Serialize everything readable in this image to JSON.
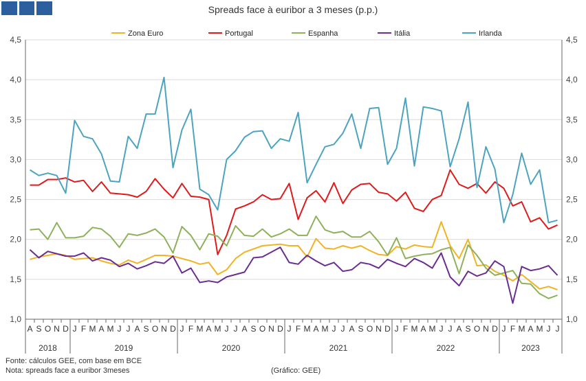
{
  "header": {
    "title": "Spreads face à euribor a 3 meses (p.p.)"
  },
  "footer": {
    "source": "Fonte: cálculos GEE, com base em BCE",
    "note": "Nota: spreads face a euribor 3meses",
    "credit": "(Gráfico: GEE)"
  },
  "chart_data": {
    "type": "line",
    "title": "Spreads face à euribor a 3 meses (p.p.)",
    "ylim": [
      1.0,
      4.5
    ],
    "yticks": [
      "1,0",
      "1,5",
      "2,0",
      "2,5",
      "3,0",
      "3,5",
      "4,0",
      "4,5"
    ],
    "grid": true,
    "legend_position": "top",
    "x": [
      "2018-08",
      "2018-09",
      "2018-10",
      "2018-11",
      "2018-12",
      "2019-01",
      "2019-02",
      "2019-03",
      "2019-04",
      "2019-05",
      "2019-06",
      "2019-07",
      "2019-08",
      "2019-09",
      "2019-10",
      "2019-11",
      "2019-12",
      "2020-01",
      "2020-02",
      "2020-03",
      "2020-04",
      "2020-05",
      "2020-06",
      "2020-07",
      "2020-08",
      "2020-09",
      "2020-10",
      "2020-11",
      "2020-12",
      "2021-01",
      "2021-02",
      "2021-03",
      "2021-04",
      "2021-05",
      "2021-06",
      "2021-07",
      "2021-08",
      "2021-09",
      "2021-10",
      "2021-11",
      "2021-12",
      "2022-01",
      "2022-02",
      "2022-03",
      "2022-04",
      "2022-05",
      "2022-06",
      "2022-07",
      "2022-08",
      "2022-09",
      "2022-10",
      "2022-11",
      "2022-12",
      "2023-01",
      "2023-02",
      "2023-03",
      "2023-04",
      "2023-05",
      "2023-06",
      "2023-07"
    ],
    "month_labels": [
      "A",
      "S",
      "O",
      "N",
      "D",
      "J",
      "F",
      "M",
      "A",
      "M",
      "J",
      "J",
      "A",
      "S",
      "O",
      "N",
      "D",
      "J",
      "F",
      "M",
      "A",
      "M",
      "J",
      "J",
      "A",
      "S",
      "O",
      "N",
      "D",
      "J",
      "F",
      "M",
      "A",
      "M",
      "J",
      "J",
      "A",
      "S",
      "O",
      "N",
      "D",
      "J",
      "F",
      "M",
      "A",
      "M",
      "J",
      "J",
      "A",
      "S",
      "O",
      "N",
      "D",
      "J",
      "F",
      "M",
      "A",
      "M",
      "J",
      "J"
    ],
    "year_labels": [
      "2018",
      "2019",
      "2020",
      "2021",
      "2022",
      "2023"
    ],
    "series": [
      {
        "name": "Zona Euro",
        "color": "#f0b323",
        "values": [
          1.75,
          1.78,
          1.8,
          1.82,
          1.8,
          1.75,
          1.76,
          1.77,
          1.73,
          1.7,
          1.68,
          1.74,
          1.7,
          1.75,
          1.8,
          1.8,
          1.79,
          1.76,
          1.73,
          1.69,
          1.71,
          1.56,
          1.62,
          1.76,
          1.84,
          1.88,
          1.92,
          1.93,
          1.94,
          1.92,
          1.92,
          1.78,
          2.01,
          1.89,
          1.88,
          1.92,
          1.89,
          1.92,
          1.86,
          1.81,
          1.8,
          1.91,
          1.88,
          1.93,
          1.91,
          1.9,
          2.22,
          1.92,
          1.76,
          2.0,
          1.67,
          1.68,
          1.6,
          1.55,
          1.48,
          1.56,
          1.47,
          1.38,
          1.41,
          1.37
        ]
      },
      {
        "name": "Portugal",
        "color": "#e01a1a",
        "values": [
          2.68,
          2.68,
          2.75,
          2.75,
          2.77,
          2.72,
          2.74,
          2.6,
          2.72,
          2.58,
          2.57,
          2.56,
          2.53,
          2.6,
          2.76,
          2.63,
          2.52,
          2.7,
          2.54,
          2.53,
          2.5,
          1.81,
          2.05,
          2.38,
          2.42,
          2.47,
          2.56,
          2.5,
          2.51,
          2.7,
          2.25,
          2.52,
          2.61,
          2.47,
          2.71,
          2.45,
          2.62,
          2.69,
          2.7,
          2.59,
          2.57,
          2.48,
          2.59,
          2.39,
          2.35,
          2.5,
          2.55,
          2.87,
          2.69,
          2.64,
          2.7,
          2.58,
          2.72,
          2.64,
          2.42,
          2.47,
          2.22,
          2.27,
          2.13,
          2.18
        ]
      },
      {
        "name": "Espanha",
        "color": "#8fb05a",
        "values": [
          2.12,
          2.13,
          2.0,
          2.21,
          2.02,
          2.02,
          2.04,
          2.15,
          2.13,
          2.04,
          1.9,
          2.07,
          2.05,
          2.08,
          2.13,
          2.03,
          1.83,
          2.16,
          2.05,
          1.87,
          2.07,
          2.04,
          1.92,
          2.17,
          2.05,
          2.04,
          2.13,
          2.03,
          2.07,
          2.13,
          2.05,
          2.05,
          2.29,
          2.12,
          2.08,
          2.1,
          2.03,
          2.03,
          2.1,
          1.97,
          1.8,
          2.02,
          1.76,
          1.79,
          1.81,
          1.82,
          1.87,
          1.9,
          1.57,
          1.93,
          1.8,
          1.64,
          1.55,
          1.58,
          1.61,
          1.45,
          1.44,
          1.32,
          1.26,
          1.3
        ]
      },
      {
        "name": "Itália",
        "color": "#6a2c91",
        "values": [
          1.87,
          1.77,
          1.85,
          1.82,
          1.79,
          1.79,
          1.83,
          1.73,
          1.77,
          1.74,
          1.66,
          1.7,
          1.63,
          1.67,
          1.72,
          1.7,
          1.79,
          1.58,
          1.64,
          1.46,
          1.48,
          1.46,
          1.53,
          1.56,
          1.59,
          1.77,
          1.78,
          1.84,
          1.9,
          1.71,
          1.69,
          1.8,
          1.73,
          1.67,
          1.71,
          1.6,
          1.62,
          1.71,
          1.69,
          1.64,
          1.75,
          1.7,
          1.66,
          1.76,
          1.71,
          1.64,
          1.83,
          1.53,
          1.42,
          1.6,
          1.54,
          1.58,
          1.73,
          1.66,
          1.2,
          1.66,
          1.61,
          1.63,
          1.67,
          1.55
        ]
      },
      {
        "name": "Irlanda",
        "color": "#4ba3c0",
        "values": [
          2.87,
          2.8,
          2.83,
          2.8,
          2.58,
          3.49,
          3.29,
          3.26,
          3.07,
          2.73,
          2.72,
          3.29,
          3.14,
          3.57,
          3.57,
          4.03,
          2.9,
          3.37,
          3.63,
          2.63,
          2.56,
          2.37,
          3.0,
          3.11,
          3.28,
          3.35,
          3.36,
          3.14,
          3.26,
          3.23,
          3.59,
          2.71,
          2.94,
          3.16,
          3.19,
          3.33,
          3.57,
          3.14,
          3.64,
          3.65,
          2.94,
          3.14,
          3.77,
          2.92,
          3.66,
          3.64,
          3.61,
          2.91,
          3.26,
          3.72,
          2.65,
          3.16,
          2.88,
          2.21,
          2.56,
          3.08,
          2.69,
          2.87,
          2.21,
          2.24
        ]
      }
    ]
  }
}
